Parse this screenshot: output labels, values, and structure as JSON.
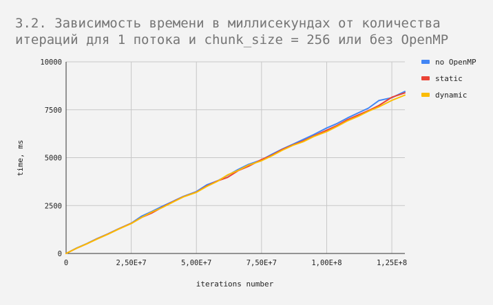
{
  "chart_data": {
    "type": "line",
    "title_lines": [
      "3.2. Зависимость времени в миллисекундах от количества",
      "итераций для 1 потока и chunk_size = 256 или без OpenMP"
    ],
    "xlabel": "iterations number",
    "ylabel": "time, ms",
    "xlim": [
      0,
      130000000
    ],
    "ylim": [
      0,
      10000
    ],
    "x_ticks": [
      0,
      25000000,
      50000000,
      75000000,
      100000000,
      125000000
    ],
    "x_tick_labels": [
      "0",
      "2,50E+7",
      "5,00E+7",
      "7,50E+7",
      "1,00E+8",
      "1,25E+8"
    ],
    "y_ticks": [
      0,
      2500,
      5000,
      7500,
      10000
    ],
    "y_tick_labels": [
      "0",
      "2500",
      "5000",
      "7500",
      "10000"
    ],
    "grid": true,
    "legend_position": "right",
    "series": [
      {
        "name": "no OpenMP",
        "color": "#4285f4",
        "x": [
          0,
          4000000,
          8000000,
          12000000,
          16000000,
          20000000,
          25000000,
          29000000,
          33000000,
          37000000,
          41000000,
          45000000,
          50000000,
          54000000,
          58000000,
          62000000,
          66000000,
          70000000,
          75000000,
          79000000,
          83000000,
          87000000,
          91000000,
          95000000,
          100000000,
          104000000,
          108000000,
          112000000,
          116000000,
          120000000,
          125000000,
          130000000
        ],
        "y": [
          0,
          280,
          520,
          780,
          1020,
          1280,
          1580,
          1950,
          2200,
          2470,
          2720,
          2980,
          3230,
          3580,
          3780,
          4080,
          4380,
          4650,
          4880,
          5180,
          5450,
          5700,
          5950,
          6200,
          6550,
          6780,
          7070,
          7330,
          7580,
          7980,
          8130,
          8450
        ]
      },
      {
        "name": "static",
        "color": "#ea4335",
        "x": [
          0,
          4000000,
          8000000,
          12000000,
          16000000,
          20000000,
          25000000,
          29000000,
          33000000,
          37000000,
          41000000,
          45000000,
          50000000,
          54000000,
          58000000,
          62000000,
          66000000,
          70000000,
          75000000,
          79000000,
          83000000,
          87000000,
          91000000,
          95000000,
          100000000,
          104000000,
          108000000,
          112000000,
          116000000,
          120000000,
          125000000,
          130000000
        ],
        "y": [
          0,
          270,
          510,
          770,
          1010,
          1270,
          1570,
          1880,
          2120,
          2420,
          2700,
          2960,
          3200,
          3520,
          3780,
          3970,
          4320,
          4550,
          4900,
          5130,
          5430,
          5660,
          5870,
          6130,
          6430,
          6680,
          6980,
          7220,
          7450,
          7720,
          8150,
          8380
        ]
      },
      {
        "name": "dynamic",
        "color": "#fbbc04",
        "x": [
          0,
          4000000,
          8000000,
          12000000,
          16000000,
          20000000,
          25000000,
          29000000,
          33000000,
          37000000,
          41000000,
          45000000,
          50000000,
          54000000,
          58000000,
          62000000,
          66000000,
          70000000,
          75000000,
          79000000,
          83000000,
          87000000,
          91000000,
          95000000,
          100000000,
          104000000,
          108000000,
          112000000,
          116000000,
          120000000,
          125000000,
          130000000
        ],
        "y": [
          0,
          270,
          510,
          760,
          1000,
          1260,
          1560,
          1880,
          2170,
          2400,
          2680,
          2950,
          3190,
          3500,
          3760,
          4100,
          4330,
          4610,
          4840,
          5100,
          5390,
          5640,
          5830,
          6100,
          6360,
          6630,
          6920,
          7150,
          7420,
          7650,
          7990,
          8260
        ]
      }
    ]
  }
}
